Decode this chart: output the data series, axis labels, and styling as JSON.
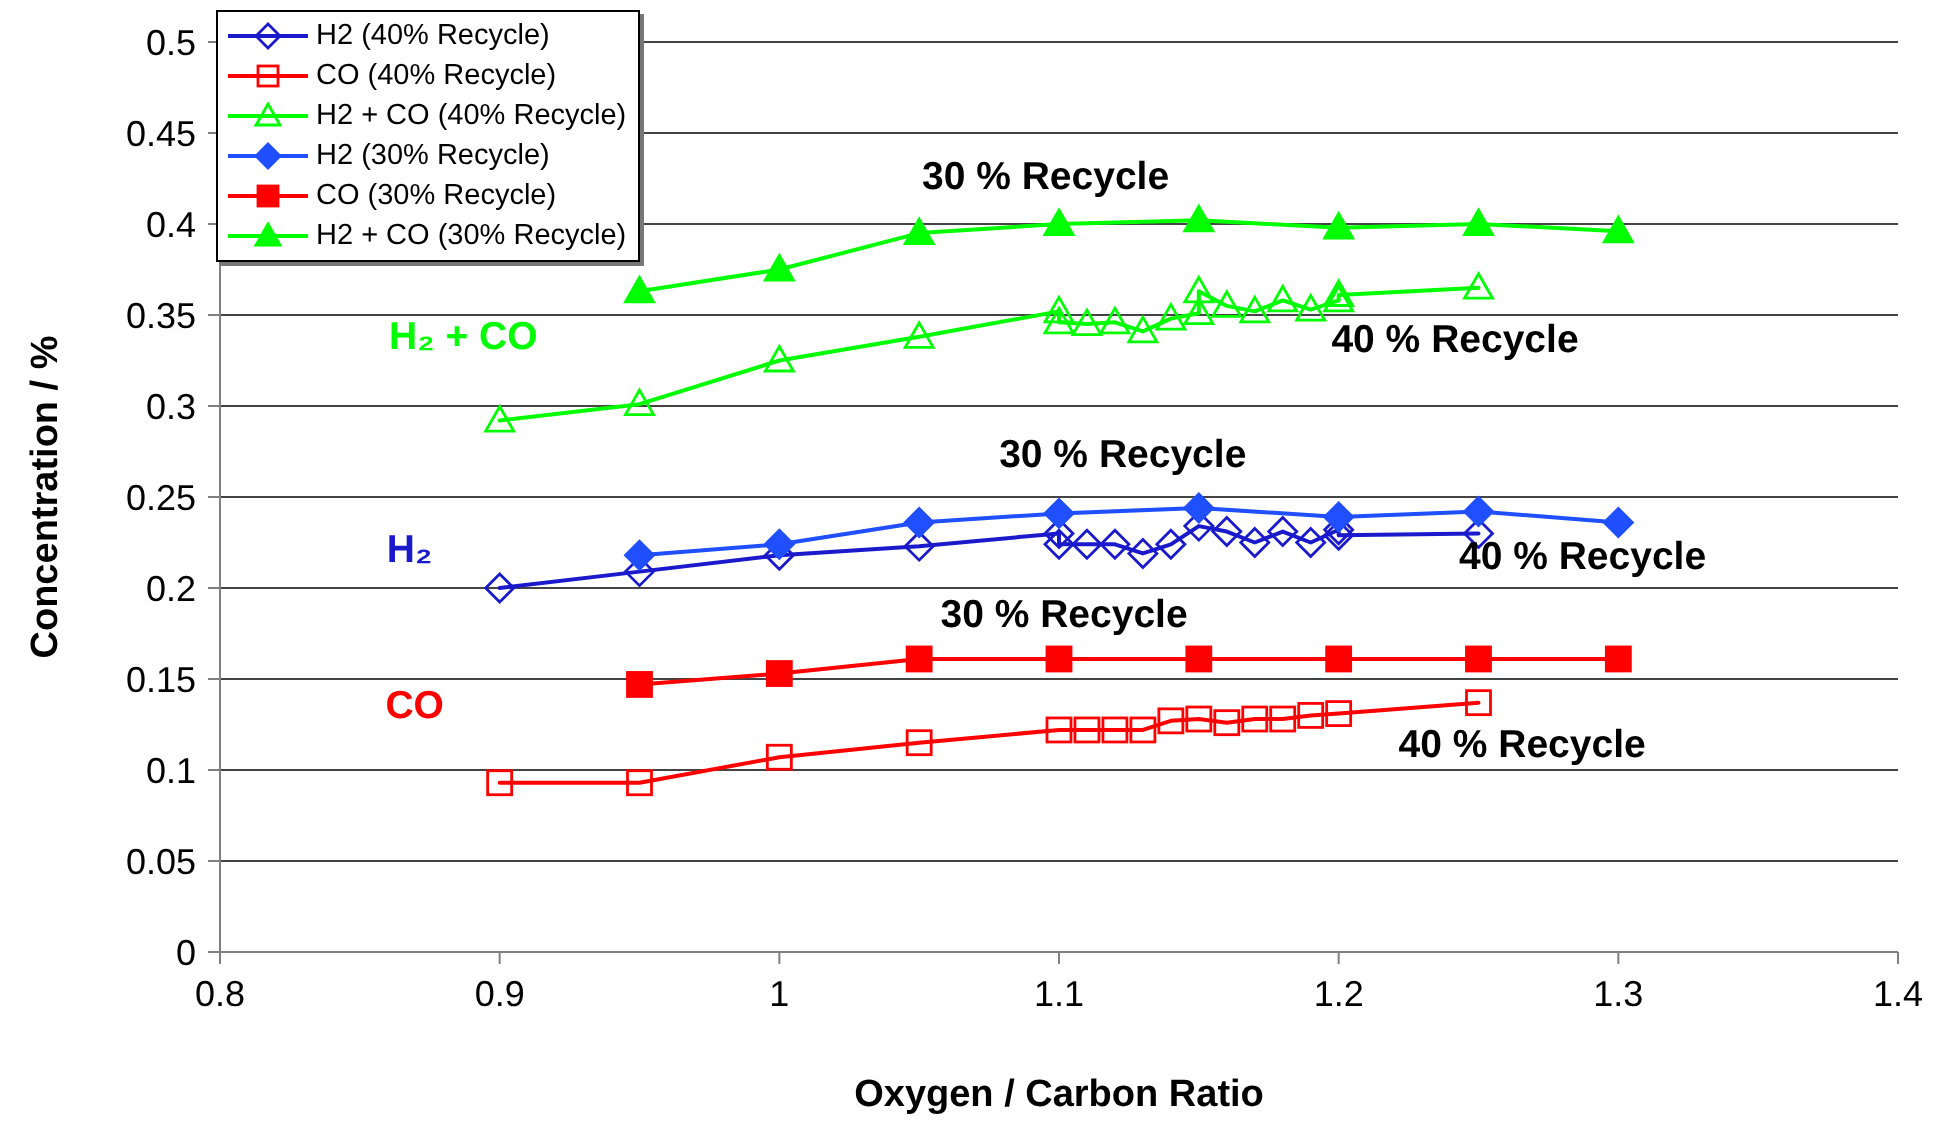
{
  "chart_data": {
    "type": "line",
    "xlabel": "Oxygen / Carbon Ratio",
    "ylabel": "Concentration / %",
    "xlim": [
      0.8,
      1.4
    ],
    "xticks": [
      0.8,
      0.9,
      1,
      1.1,
      1.2,
      1.3,
      1.4
    ],
    "ylim": [
      0,
      0.5
    ],
    "yticks": [
      0,
      0.05,
      0.1,
      0.15,
      0.2,
      0.25,
      0.3,
      0.35,
      0.4,
      0.45,
      0.5
    ],
    "grid": "y",
    "legend": "top left",
    "line_style": "solid",
    "series": [
      {
        "name": "H2 (40% Recycle)",
        "color": "#1a1acc",
        "marker": "diamond",
        "x": [
          0.9,
          0.95,
          1,
          1.05,
          1.1,
          1.1,
          1.11,
          1.12,
          1.13,
          1.14,
          1.15,
          1.16,
          1.17,
          1.18,
          1.19,
          1.2,
          1.2,
          1.25
        ],
        "values": [
          0.2,
          0.209,
          0.218,
          0.223,
          0.23,
          0.224,
          0.224,
          0.224,
          0.219,
          0.224,
          0.234,
          0.231,
          0.225,
          0.231,
          0.225,
          0.232,
          0.229,
          0.23
        ]
      },
      {
        "name": "CO (40% Recycle)",
        "color": "#ff0000",
        "marker": "square",
        "x": [
          0.9,
          0.95,
          1,
          1.05,
          1.1,
          1.11,
          1.12,
          1.13,
          1.14,
          1.15,
          1.16,
          1.17,
          1.18,
          1.19,
          1.2,
          1.25
        ],
        "values": [
          0.093,
          0.093,
          0.107,
          0.115,
          0.122,
          0.122,
          0.122,
          0.122,
          0.127,
          0.128,
          0.126,
          0.128,
          0.128,
          0.13,
          0.131,
          0.137
        ]
      },
      {
        "name": "H2 + CO (40% Recycle)",
        "color": "#00ff00",
        "marker": "triangle",
        "x": [
          0.9,
          0.95,
          1,
          1.05,
          1.1,
          1.1,
          1.11,
          1.12,
          1.13,
          1.14,
          1.15,
          1.15,
          1.16,
          1.17,
          1.18,
          1.19,
          1.2,
          1.2,
          1.25
        ],
        "values": [
          0.292,
          0.301,
          0.325,
          0.338,
          0.352,
          0.346,
          0.345,
          0.346,
          0.341,
          0.348,
          0.351,
          0.363,
          0.355,
          0.352,
          0.358,
          0.353,
          0.358,
          0.361,
          0.365
        ]
      },
      {
        "name": "H2 (30% Recycle)",
        "color": "#1f4fff",
        "marker": "diamond",
        "x": [
          0.95,
          1,
          1.05,
          1.1,
          1.15,
          1.2,
          1.25,
          1.3
        ],
        "values": [
          0.218,
          0.224,
          0.236,
          0.241,
          0.244,
          0.239,
          0.242,
          0.236
        ]
      },
      {
        "name": "CO (30% Recycle)",
        "color": "#ff0000",
        "marker": "square",
        "x": [
          0.95,
          1,
          1.05,
          1.1,
          1.15,
          1.2,
          1.25,
          1.3
        ],
        "values": [
          0.147,
          0.153,
          0.161,
          0.161,
          0.161,
          0.161,
          0.161,
          0.161
        ]
      },
      {
        "name": "H2 + CO (30% Recycle)",
        "color": "#00ff00",
        "marker": "triangle",
        "x": [
          0.95,
          1,
          1.05,
          1.1,
          1.15,
          1.2,
          1.25,
          1.3
        ],
        "values": [
          0.363,
          0.375,
          0.395,
          0.4,
          0.402,
          0.398,
          0.4,
          0.396
        ]
      }
    ],
    "annotations": [
      "30 % Recycle",
      "40 % Recycle",
      "30 % Recycle",
      "40 % Recycle",
      "30 % Recycle",
      "40 % Recycle",
      "H₂ + CO",
      "H₂",
      "CO"
    ]
  }
}
